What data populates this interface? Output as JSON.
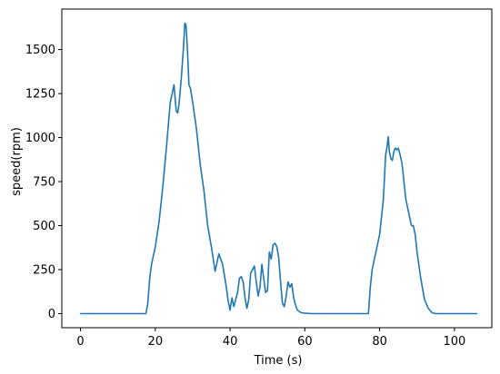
{
  "chart_data": {
    "type": "line",
    "title": "",
    "xlabel": "Time (s)",
    "ylabel": "speed(rpm)",
    "xlim": [
      -5,
      110
    ],
    "ylim": [
      -80,
      1730
    ],
    "xticks": [
      0,
      20,
      40,
      60,
      80,
      100
    ],
    "yticks": [
      0,
      250,
      500,
      750,
      1000,
      1250,
      1500
    ],
    "grid": false,
    "legend": "none",
    "colors": {
      "line": "#1f77b4",
      "axis": "#000000",
      "background": "#ffffff"
    },
    "series": [
      {
        "x": [
          0,
          17.5,
          18.0,
          18.5,
          19.0,
          20.0,
          21.0,
          22.0,
          23.0,
          24.0,
          25.0,
          25.6,
          26.0,
          26.4,
          27.0,
          27.5,
          27.9,
          28.2,
          28.6,
          29.0,
          29.4,
          30.0,
          31.0,
          32.0,
          33.0,
          34.0,
          35.0,
          36.0,
          37.0,
          38.0,
          39.0,
          39.5,
          40.0,
          40.5,
          41.0,
          41.5,
          42.0,
          42.5,
          43.0,
          43.5,
          44.0,
          44.5,
          45.0,
          45.5,
          46.0,
          46.5,
          47.0,
          47.5,
          48.0,
          48.5,
          49.0,
          49.5,
          50.0,
          50.5,
          51.0,
          51.5,
          52.0,
          52.5,
          53.0,
          53.5,
          54.0,
          54.5,
          55.0,
          55.5,
          56.0,
          56.5,
          57.0,
          57.5,
          58.0,
          59.0,
          60.0,
          62.0,
          65.0,
          70.0,
          75.0,
          77.0,
          77.5,
          78.0,
          79.0,
          80.0,
          81.0,
          81.6,
          82.0,
          82.3,
          82.6,
          83.0,
          83.4,
          83.8,
          84.2,
          84.6,
          85.0,
          85.5,
          86.0,
          86.5,
          87.0,
          88.0,
          88.5,
          89.0,
          89.5,
          90.0,
          91.0,
          92.0,
          93.0,
          94.0,
          95.0,
          96.0,
          100.0,
          106.0
        ],
        "y": [
          0,
          0,
          60,
          200,
          280,
          380,
          520,
          720,
          950,
          1200,
          1300,
          1150,
          1140,
          1200,
          1350,
          1500,
          1650,
          1640,
          1500,
          1300,
          1280,
          1200,
          1050,
          850,
          700,
          500,
          380,
          240,
          340,
          280,
          150,
          70,
          20,
          90,
          40,
          80,
          120,
          200,
          210,
          180,
          90,
          30,
          80,
          230,
          250,
          270,
          180,
          100,
          150,
          280,
          200,
          120,
          130,
          350,
          310,
          390,
          400,
          380,
          320,
          180,
          60,
          40,
          100,
          180,
          150,
          170,
          90,
          50,
          20,
          5,
          2,
          0,
          0,
          0,
          0,
          0,
          150,
          250,
          350,
          450,
          650,
          900,
          950,
          1005,
          920,
          880,
          870,
          920,
          940,
          930,
          940,
          900,
          850,
          750,
          650,
          550,
          500,
          500,
          450,
          350,
          200,
          80,
          30,
          5,
          0,
          0,
          0,
          0
        ]
      }
    ]
  }
}
